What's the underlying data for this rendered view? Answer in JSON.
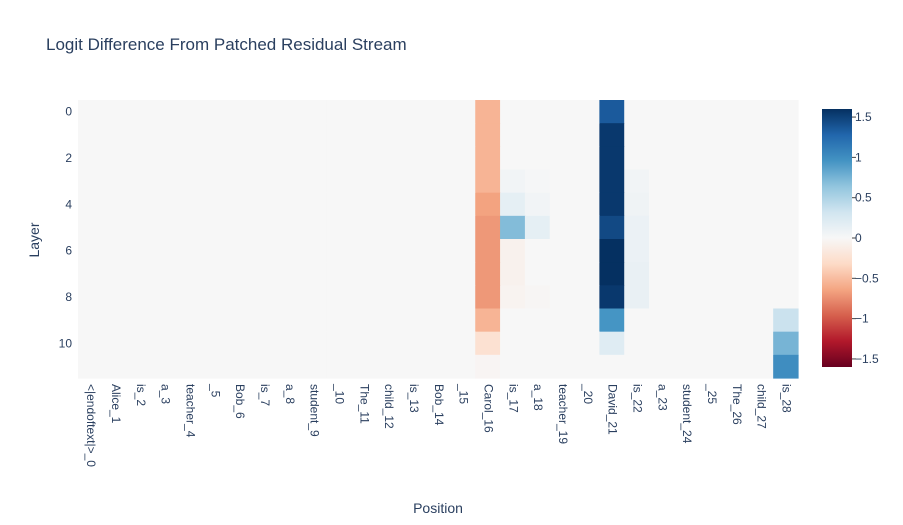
{
  "chart_data": {
    "type": "heatmap",
    "title": "Logit Difference From Patched Residual Stream",
    "xlabel": "Position",
    "ylabel": "Layer",
    "x": [
      "<|endoftext|>_0",
      "Alice_1",
      "is_2",
      "a_3",
      "teacher_4",
      "_5",
      "Bob_6",
      "is_7",
      "a_8",
      "student_9",
      "_10",
      "The_11",
      "child_12",
      "is_13",
      "Bob_14",
      "_15",
      "Carol_16",
      "is_17",
      "a_18",
      "teacher_19",
      "_20",
      "David_21",
      "is_22",
      "a_23",
      "student_24",
      "_25",
      "The_26",
      "child_27",
      "is_28"
    ],
    "y": [
      0,
      1,
      2,
      3,
      4,
      5,
      6,
      7,
      8,
      9,
      10,
      11
    ],
    "ytick_labels": [
      "0",
      "2",
      "4",
      "6",
      "8",
      "10"
    ],
    "colorscale": "RdBu",
    "zmin": -1.6,
    "zmax": 1.6,
    "colorbar_ticks": [
      "1.5",
      "1",
      "0.5",
      "0",
      "−0.5",
      "−1",
      "−1.5"
    ],
    "colorbar_tick_values": [
      1.5,
      1,
      0.5,
      0,
      -0.5,
      -1,
      -1.5
    ],
    "z": [
      [
        0,
        0,
        0,
        0,
        0,
        0,
        0,
        0,
        0,
        0,
        0,
        0,
        0,
        0,
        0,
        0,
        -0.55,
        0,
        0,
        0,
        0,
        1.35,
        0,
        0,
        0,
        0,
        0,
        0,
        0
      ],
      [
        0,
        0,
        0,
        0,
        0,
        0,
        0,
        0,
        0,
        0,
        0,
        0,
        0,
        0,
        0,
        0,
        -0.55,
        0,
        0,
        0,
        0,
        1.55,
        0,
        0,
        0,
        0,
        0,
        0,
        0
      ],
      [
        0,
        0,
        0,
        0,
        0,
        0,
        0,
        0,
        0,
        0,
        0,
        0,
        0,
        0,
        0,
        0,
        -0.55,
        0,
        0,
        0,
        0,
        1.55,
        0,
        0,
        0,
        0,
        0,
        0,
        0
      ],
      [
        0,
        0,
        0,
        0,
        0,
        0,
        0,
        0,
        0,
        0,
        0,
        0,
        0,
        0,
        0,
        0,
        -0.55,
        0.05,
        0.02,
        0,
        0,
        1.55,
        0.05,
        0,
        0,
        0,
        0,
        0,
        0
      ],
      [
        0,
        0,
        0,
        0,
        0,
        0,
        0,
        0,
        0,
        0,
        0,
        0,
        0,
        0,
        0,
        0,
        -0.65,
        0.15,
        0.05,
        0,
        0,
        1.55,
        0.07,
        0,
        0,
        0,
        0,
        0,
        0
      ],
      [
        0,
        0,
        0,
        0,
        0,
        0,
        0,
        0,
        0,
        0,
        0,
        0,
        0,
        0,
        0,
        0,
        -0.7,
        0.7,
        0.15,
        0,
        0,
        1.45,
        0.1,
        0,
        0,
        0,
        0,
        0,
        0
      ],
      [
        0,
        0,
        0,
        0,
        0,
        0,
        0,
        0,
        0,
        0,
        0,
        0,
        0,
        0,
        0,
        0,
        -0.7,
        -0.07,
        0,
        0,
        0,
        1.65,
        0.1,
        0,
        0,
        0,
        0,
        0,
        0
      ],
      [
        0,
        0,
        0,
        0,
        0,
        0,
        0,
        0,
        0,
        0,
        0,
        0,
        0,
        0,
        0,
        0,
        -0.7,
        -0.07,
        0,
        0,
        0,
        1.6,
        0.12,
        0,
        0,
        0,
        0,
        0,
        0
      ],
      [
        0,
        0,
        0,
        0,
        0,
        0,
        0,
        0,
        0,
        0,
        0,
        0,
        0,
        0,
        0,
        0,
        -0.7,
        -0.05,
        -0.02,
        0,
        0,
        1.55,
        0.12,
        0,
        0,
        0,
        0,
        0,
        0
      ],
      [
        0,
        0,
        0,
        0,
        0,
        0,
        0,
        0,
        0,
        0,
        0,
        0,
        0,
        0,
        0,
        0,
        -0.55,
        0,
        0,
        0,
        0,
        0.95,
        0,
        0,
        0,
        0,
        0,
        0,
        0.35
      ],
      [
        0,
        0,
        0,
        0,
        0,
        0,
        0,
        0,
        0,
        0,
        0,
        0,
        0,
        0,
        0,
        0,
        -0.25,
        0,
        0,
        0,
        0,
        0.2,
        0,
        0,
        0,
        0,
        0,
        0,
        0.75
      ],
      [
        0,
        0,
        0,
        0,
        0,
        0,
        0,
        0,
        0,
        0,
        0,
        0,
        0,
        0,
        0,
        0,
        -0.03,
        0,
        0,
        0,
        0,
        0,
        0,
        0,
        0,
        0,
        0,
        0,
        1.0
      ]
    ]
  }
}
